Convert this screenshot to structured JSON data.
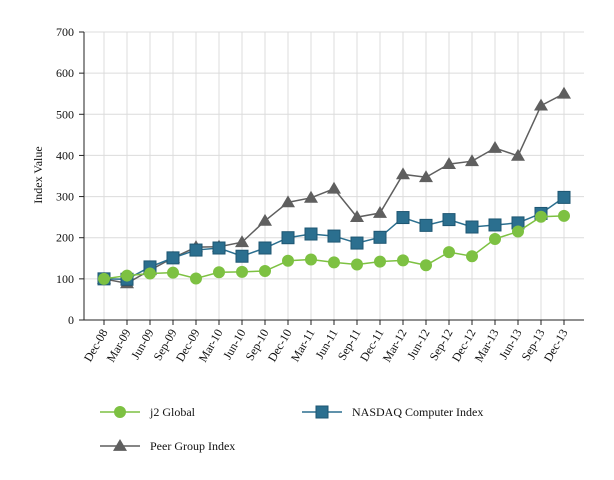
{
  "chart_data": {
    "type": "line",
    "title": "",
    "xlabel": "",
    "ylabel": "Index Value",
    "ylim": [
      0,
      700
    ],
    "yticks": [
      0,
      100,
      200,
      300,
      400,
      500,
      600,
      700
    ],
    "grid": true,
    "legend_position": "bottom",
    "categories": [
      "Dec-08",
      "Mar-09",
      "Jun-09",
      "Sep-09",
      "Dec-09",
      "Mar-10",
      "Jun-10",
      "Sep-10",
      "Dec-10",
      "Mar-11",
      "Jun-11",
      "Sep-11",
      "Dec-11",
      "Mar-12",
      "Jun-12",
      "Sep-12",
      "Dec-12",
      "Mar-13",
      "Jun-13",
      "Sep-13",
      "Dec-13"
    ],
    "series": [
      {
        "name": "j2 Global",
        "color": "#7dc142",
        "marker": "circle",
        "values": [
          100,
          108,
          113,
          115,
          101,
          116,
          117,
          119,
          144,
          147,
          140,
          135,
          142,
          145,
          133,
          165,
          155,
          197,
          215,
          251,
          253
        ]
      },
      {
        "name": "NASDAQ Computer Index",
        "color": "#2b6f8f",
        "marker": "square",
        "values": [
          100,
          99,
          129,
          151,
          170,
          175,
          155,
          175,
          200,
          209,
          204,
          187,
          201,
          249,
          230,
          244,
          226,
          231,
          236,
          259,
          298
        ]
      },
      {
        "name": "Peer Group Index",
        "color": "#5f5f5f",
        "marker": "triangle",
        "values": [
          100,
          89,
          121,
          151,
          177,
          178,
          189,
          241,
          286,
          297,
          319,
          250,
          260,
          354,
          347,
          379,
          386,
          418,
          399,
          521,
          550
        ]
      }
    ]
  }
}
